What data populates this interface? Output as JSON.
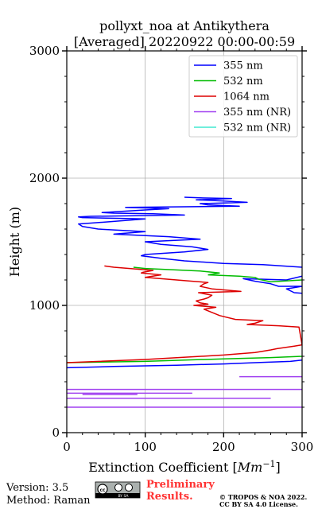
{
  "title_line1": "pollyxt_noa at Antikythera",
  "title_line2": "[Averaged] 20220922 00:00-00:59",
  "footer": {
    "version": "Version: 3.5",
    "method": "Method: Raman",
    "preliminary": "Preliminary Results.",
    "copyright_line1": "© TROPOS & NOA 2022.",
    "copyright_line2": "CC BY SA 4.0 License.",
    "cc_badge_text": "BY SA"
  },
  "colors": {
    "s355": "#0000ff",
    "s532": "#00bb00",
    "s1064": "#dd0000",
    "s355nr": "#a040f0",
    "s532nr": "#40e8d0",
    "preliminary": "#ff3333"
  },
  "chart_data": {
    "type": "line",
    "title": "pollyxt_noa at Antikythera [Averaged] 20220922 00:00-00:59",
    "xlabel": "Extinction Coefficient [Mm^-1]",
    "ylabel": "Height (m)",
    "xlim": [
      0,
      300
    ],
    "ylim": [
      0,
      3000
    ],
    "xticks": [
      0,
      100,
      200,
      300
    ],
    "yticks": [
      0,
      1000,
      2000,
      3000
    ],
    "grid": true,
    "legend_position": "top-right",
    "series": [
      {
        "name": "355 nm",
        "color": "#0000ff",
        "x": [
          0,
          60,
          140,
          200,
          240,
          285,
          300,
          330,
          330,
          290,
          280,
          300,
          270,
          260,
          240,
          225,
          280,
          300,
          330,
          300,
          250,
          200,
          150,
          120,
          95,
          100,
          150,
          180,
          160,
          120,
          100,
          170,
          130,
          60,
          100,
          40,
          20,
          15,
          60,
          100,
          20,
          15,
          30,
          150,
          110,
          60,
          45,
          100,
          130,
          75,
          220,
          180,
          170,
          230,
          200,
          165,
          210,
          170,
          150
        ],
        "y": [
          510,
          520,
          530,
          540,
          550,
          560,
          570,
          1040,
          1080,
          1100,
          1130,
          1150,
          1150,
          1170,
          1190,
          1210,
          1200,
          1230,
          1280,
          1300,
          1320,
          1330,
          1350,
          1370,
          1390,
          1400,
          1420,
          1440,
          1460,
          1480,
          1500,
          1520,
          1540,
          1560,
          1580,
          1600,
          1620,
          1640,
          1660,
          1680,
          1690,
          1695,
          1700,
          1710,
          1720,
          1725,
          1730,
          1750,
          1760,
          1770,
          1780,
          1790,
          1800,
          1810,
          1820,
          1830,
          1840,
          1845,
          1850
        ]
      },
      {
        "name": "532 nm",
        "color": "#00bb00",
        "x": [
          0,
          100,
          200,
          260,
          300,
          400,
          300,
          260,
          245,
          240,
          220,
          180,
          195,
          170,
          100,
          85
        ],
        "y": [
          550,
          560,
          580,
          590,
          600,
          1190,
          1200,
          1185,
          1205,
          1220,
          1230,
          1240,
          1255,
          1270,
          1290,
          1300
        ],
        "segments": [
          [
            0,
            5
          ],
          [
            6,
            15
          ]
        ]
      },
      {
        "name": "1064 nm",
        "color": "#dd0000",
        "x": [
          0,
          100,
          200,
          240,
          260,
          268,
          290,
          300,
          296,
          270,
          230,
          240,
          250,
          215,
          195,
          175,
          190,
          162,
          180,
          170,
          165,
          175,
          180,
          185,
          168,
          222,
          185,
          170,
          175,
          180,
          160,
          100,
          120,
          95,
          97,
          110,
          60,
          48
        ],
        "y": [
          550,
          575,
          610,
          630,
          650,
          660,
          680,
          690,
          830,
          840,
          850,
          860,
          880,
          890,
          920,
          970,
          985,
          1000,
          1010,
          1020,
          1035,
          1050,
          1060,
          1080,
          1100,
          1110,
          1130,
          1150,
          1170,
          1180,
          1190,
          1220,
          1240,
          1255,
          1260,
          1275,
          1300,
          1310
        ]
      },
      {
        "name": "355 nm (NR)",
        "color": "#a040f0",
        "x": [
          [
            0,
            300
          ],
          [
            0,
            260
          ],
          [
            20,
            90
          ],
          [
            0,
            160
          ],
          [
            0,
            300
          ],
          [
            220,
            300
          ]
        ],
        "y": [
          [
            200,
            200
          ],
          [
            270,
            270
          ],
          [
            300,
            300
          ],
          [
            310,
            310
          ],
          [
            340,
            340
          ],
          [
            440,
            440
          ]
        ]
      },
      {
        "name": "532 nm (NR)",
        "color": "#40e8d0",
        "x": [],
        "y": []
      }
    ]
  }
}
